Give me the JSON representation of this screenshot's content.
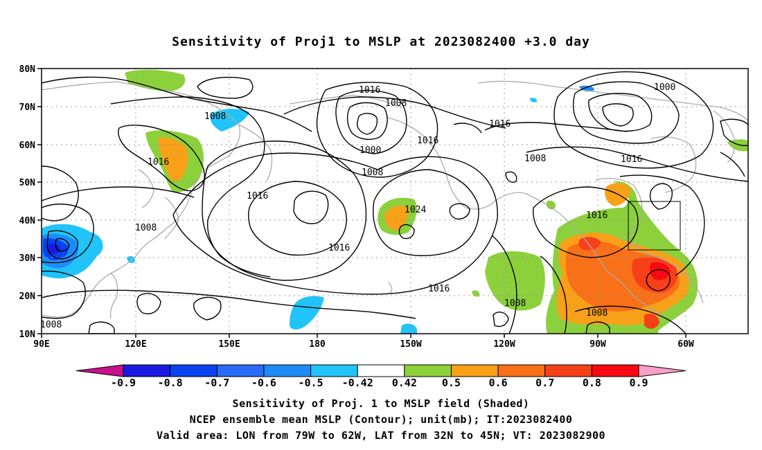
{
  "title": "Sensitivity of Proj1 to MSLP at 2023082400 +3.0 day",
  "lat_ticks": [
    "80N",
    "70N",
    "60N",
    "50N",
    "40N",
    "30N",
    "20N",
    "10N"
  ],
  "lon_ticks": [
    "90E",
    "120E",
    "150E",
    "180",
    "150W",
    "120W",
    "90W",
    "60W"
  ],
  "contour_labels": [
    "1016",
    "1008",
    "1016",
    "1000",
    "1008",
    "1016",
    "1000",
    "1016",
    "1008",
    "1008",
    "1016",
    "1016",
    "1024",
    "1016",
    "1008",
    "1016",
    "1016",
    "1016",
    "1008",
    "1008",
    "1008"
  ],
  "colorbar": {
    "labels": [
      "-0.9",
      "-0.8",
      "-0.7",
      "-0.6",
      "-0.5",
      "-0.42",
      "0.42",
      "0.5",
      "0.6",
      "0.7",
      "0.8",
      "0.9"
    ],
    "colors": [
      "#c8128c",
      "#1a1ae0",
      "#0a44f0",
      "#2a6af6",
      "#1e8cf8",
      "#20c4f8",
      "#ffffff",
      "#8cd03c",
      "#f8a018",
      "#f87018",
      "#f84018",
      "#f80810",
      "#f8a0c8"
    ]
  },
  "captions": {
    "line1": "Sensitivity of Proj. 1 to MSLP field (Shaded)",
    "line2": "NCEP ensemble mean MSLP (Contour); unit(mb); IT:2023082400",
    "line3": "Valid area: LON from 79W to 62W, LAT from 32N to 45N; VT: 2023082900"
  },
  "valid_area": {
    "lon": [
      -79,
      -62
    ],
    "lat": [
      32,
      45
    ]
  }
}
